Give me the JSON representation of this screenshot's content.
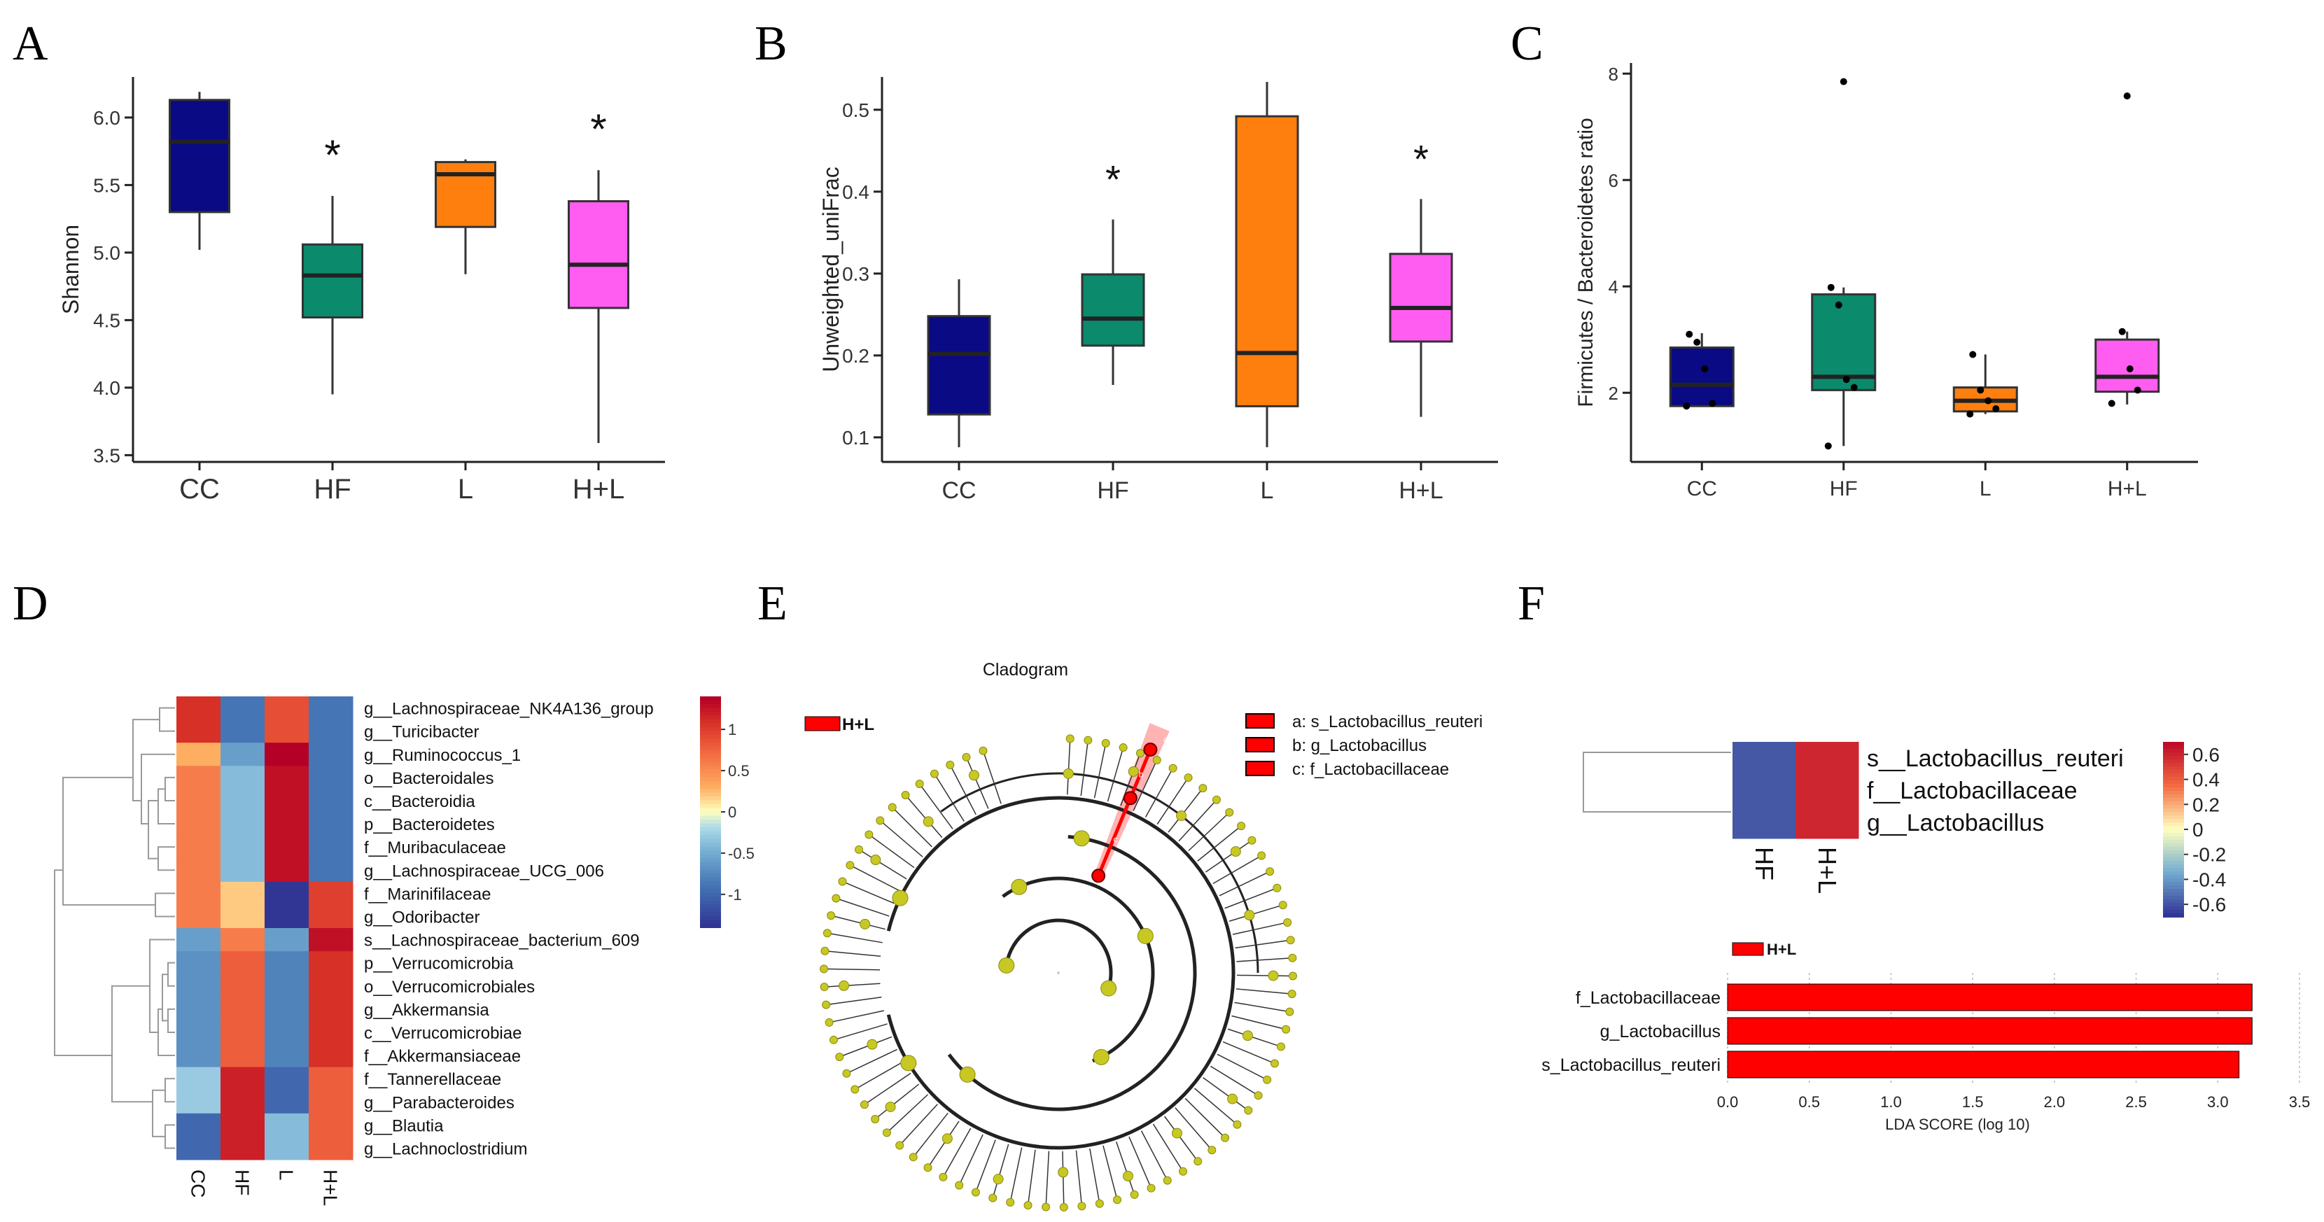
{
  "panel_labels": [
    "A",
    "B",
    "C",
    "D",
    "E",
    "F"
  ],
  "colors": {
    "CC": "#0a0a85",
    "HF": "#0b8a6c",
    "L": "#ff7f0e",
    "H+L": "#ff5cf2",
    "red": "#ff0000",
    "clado_node": "#c8c823",
    "clado_ring": "#222222"
  },
  "chart_data": [
    {
      "id": "A",
      "type": "box",
      "ylabel": "Shannon",
      "categories": [
        "CC",
        "HF",
        "L",
        "H+L"
      ],
      "ylim": [
        3.45,
        6.3
      ],
      "yticks": [
        "3.5",
        "4.0",
        "4.5",
        "5.0",
        "5.5",
        "6.0"
      ],
      "boxes": [
        {
          "min": 5.02,
          "q1": 5.3,
          "median": 5.82,
          "q3": 6.13,
          "max": 6.19
        },
        {
          "min": 3.95,
          "q1": 4.52,
          "median": 4.83,
          "q3": 5.06,
          "max": 5.42
        },
        {
          "min": 4.84,
          "q1": 5.19,
          "median": 5.58,
          "q3": 5.67,
          "max": 5.69
        },
        {
          "min": 3.59,
          "q1": 4.59,
          "median": 4.91,
          "q3": 5.38,
          "max": 5.61
        }
      ],
      "asterisks": [
        "",
        "*",
        "",
        "*"
      ]
    },
    {
      "id": "B",
      "type": "box",
      "ylabel": "Unweighted_uniFrac",
      "categories": [
        "CC",
        "HF",
        "L",
        "H+L"
      ],
      "ylim": [
        0.07,
        0.54
      ],
      "yticks": [
        "0.1",
        "0.2",
        "0.3",
        "0.4",
        "0.5"
      ],
      "boxes": [
        {
          "min": 0.088,
          "q1": 0.128,
          "median": 0.202,
          "q3": 0.248,
          "max": 0.293
        },
        {
          "min": 0.164,
          "q1": 0.212,
          "median": 0.245,
          "q3": 0.299,
          "max": 0.366
        },
        {
          "min": 0.088,
          "q1": 0.138,
          "median": 0.203,
          "q3": 0.492,
          "max": 0.534
        },
        {
          "min": 0.125,
          "q1": 0.217,
          "median": 0.258,
          "q3": 0.324,
          "max": 0.391
        }
      ],
      "asterisks": [
        "",
        "*",
        "",
        "*"
      ]
    },
    {
      "id": "C",
      "type": "box",
      "ylabel": "Firmicutes / Bacteroidetes ratio",
      "categories": [
        "CC",
        "HF",
        "L",
        "H+L"
      ],
      "ylim": [
        0.7,
        8.2
      ],
      "yticks": [
        "2",
        "4",
        "6",
        "8"
      ],
      "boxes": [
        {
          "min": 1.75,
          "q1": 1.75,
          "median": 2.15,
          "q3": 2.85,
          "max": 3.12
        },
        {
          "min": 1.0,
          "q1": 2.05,
          "median": 2.3,
          "q3": 3.85,
          "max": 3.98
        },
        {
          "min": 1.6,
          "q1": 1.65,
          "median": 1.85,
          "q3": 2.1,
          "max": 2.72
        },
        {
          "min": 1.78,
          "q1": 2.02,
          "median": 2.3,
          "q3": 3.0,
          "max": 3.15
        }
      ],
      "outliers": [
        [],
        [
          7.85
        ],
        [],
        [
          7.58
        ]
      ],
      "points": [
        [
          1.75,
          1.8,
          2.45,
          2.95,
          3.1
        ],
        [
          1.0,
          2.1,
          2.25,
          3.65,
          3.98
        ],
        [
          1.6,
          1.7,
          1.85,
          2.05,
          2.72
        ],
        [
          1.8,
          2.05,
          2.45,
          3.15
        ]
      ]
    },
    {
      "id": "D",
      "type": "heatmap",
      "columns": [
        "CC",
        "HF",
        "L",
        "H+L"
      ],
      "rows": [
        "g__Lachnospiraceae_NK4A136_group",
        "g__Turicibacter",
        "g__Ruminococcus_1",
        "o__Bacteroidales",
        "c__Bacteroidia",
        "p__Bacteroidetes",
        "f__Muribaculaceae",
        "g__Lachnospiraceae_UCG_006",
        "f__Marinifilaceae",
        "g__Odoribacter",
        "s__Lachnospiraceae_bacterium_609",
        "p__Verrucomicrobia",
        "o__Verrucomicrobiales",
        "g__Akkermansia",
        "c__Verrucomicrobiae",
        "f__Akkermansiaceae",
        "f__Tannerellaceae",
        "g__Parabacteroides",
        "g__Blautia",
        "g__Lachnoclostridium"
      ],
      "values": [
        [
          1.1,
          -0.9,
          0.9,
          -0.9
        ],
        [
          1.1,
          -0.9,
          0.9,
          -0.9
        ],
        [
          0.3,
          -0.6,
          1.4,
          -0.9
        ],
        [
          0.6,
          -0.4,
          1.3,
          -0.9
        ],
        [
          0.6,
          -0.4,
          1.3,
          -0.9
        ],
        [
          0.6,
          -0.4,
          1.3,
          -0.9
        ],
        [
          0.6,
          -0.4,
          1.3,
          -0.9
        ],
        [
          0.6,
          -0.4,
          1.3,
          -0.9
        ],
        [
          0.6,
          0.2,
          -1.4,
          1.0
        ],
        [
          0.6,
          0.2,
          -1.4,
          1.0
        ],
        [
          -0.6,
          0.6,
          -0.6,
          1.3
        ],
        [
          -0.7,
          0.8,
          -0.8,
          1.1
        ],
        [
          -0.7,
          0.8,
          -0.8,
          1.1
        ],
        [
          -0.7,
          0.8,
          -0.8,
          1.1
        ],
        [
          -0.7,
          0.8,
          -0.8,
          1.1
        ],
        [
          -0.7,
          0.8,
          -0.8,
          1.1
        ],
        [
          -0.3,
          1.2,
          -1.0,
          0.8
        ],
        [
          -0.3,
          1.2,
          -1.0,
          0.8
        ],
        [
          -1.0,
          1.2,
          -0.4,
          0.8
        ],
        [
          -1.0,
          1.2,
          -0.4,
          0.8
        ]
      ],
      "colorbar": {
        "ticks": [
          "1",
          "0.5",
          "0",
          "-0.5",
          "-1"
        ],
        "range": [
          -1.4,
          1.4
        ]
      }
    },
    {
      "id": "E",
      "type": "cladogram",
      "title": "Cladogram",
      "legend": "H+L",
      "key": [
        "a: s_Lactobacillus_reuteri",
        "b: g_Lactobacillus",
        "c: f_Lactobacillaceae"
      ],
      "highlight_letters": [
        "a",
        "b",
        "c"
      ]
    },
    {
      "id": "F-heat",
      "type": "heatmap",
      "columns": [
        "HF",
        "H+L"
      ],
      "rows": [
        "s__Lactobacillus_reuteri",
        "f__Lactobacillaceae",
        "g__Lactobacillus"
      ],
      "values": [
        [
          -0.6,
          0.6
        ],
        [
          -0.6,
          0.6
        ],
        [
          -0.6,
          0.6
        ]
      ],
      "colorbar": {
        "ticks": [
          "0.6",
          "0.4",
          "0.2",
          "0",
          "-0.2",
          "-0.4",
          "-0.6"
        ],
        "range": [
          -0.7,
          0.7
        ]
      }
    },
    {
      "id": "F-lda",
      "type": "bar",
      "orientation": "horizontal",
      "legend": "H+L",
      "categories": [
        "f_Lactobacillaceae",
        "g_Lactobacillus",
        "s_Lactobacillus_reuteri"
      ],
      "values": [
        3.21,
        3.21,
        3.13
      ],
      "xlabel": "LDA SCORE (log 10)",
      "xlim": [
        0,
        3.5
      ],
      "xticks": [
        "0.0",
        "0.5",
        "1.0",
        "1.5",
        "2.0",
        "2.5",
        "3.0",
        "3.5"
      ]
    }
  ]
}
